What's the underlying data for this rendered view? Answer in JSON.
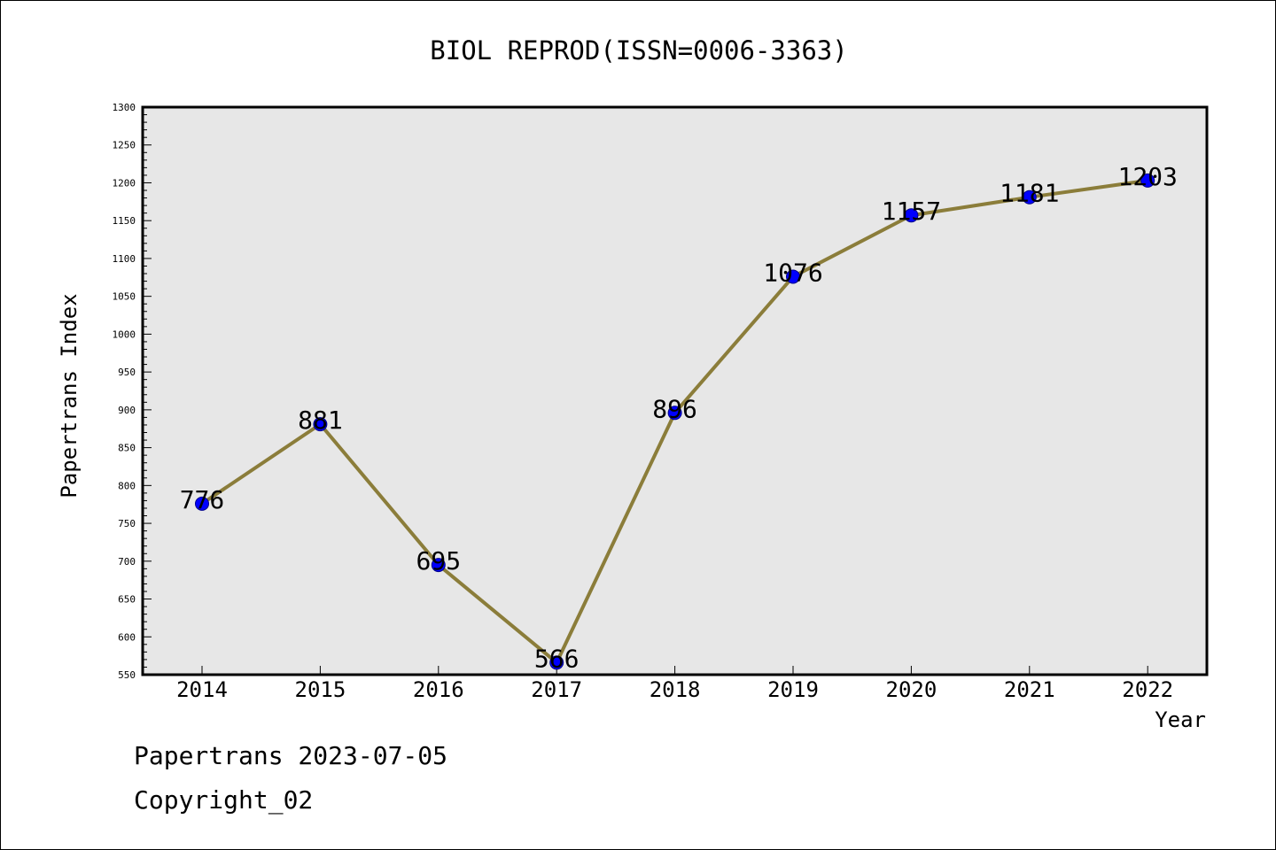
{
  "chart_data": {
    "type": "line",
    "title": "BIOL REPROD(ISSN=0006-3363)",
    "xlabel": "Year",
    "ylabel": "Papertrans Index",
    "categories": [
      "2014",
      "2015",
      "2016",
      "2017",
      "2018",
      "2019",
      "2020",
      "2021",
      "2022"
    ],
    "series": [
      {
        "values": [
          776,
          881,
          695,
          566,
          896,
          1076,
          1157,
          1181,
          1203
        ]
      }
    ],
    "data_labels": [
      "776",
      "881",
      "695",
      "566",
      "896",
      "1076",
      "1157",
      "1181",
      "1203"
    ],
    "ylim": [
      550,
      1300
    ],
    "y_ticks": [
      "550",
      "600",
      "650",
      "700",
      "750",
      "800",
      "850",
      "900",
      "950",
      "1000",
      "1050",
      "1100",
      "1150",
      "1200",
      "1250",
      "1300"
    ],
    "grid": false,
    "legend": "none"
  },
  "footer": {
    "line1": "Papertrans 2023-07-05",
    "line2": "Copyright_02"
  },
  "colors": {
    "line": "#8b7d3a",
    "marker": "#0000ff",
    "marker_edge": "#00008b",
    "plot_background": "#e7e7e7",
    "axes": "#000000"
  }
}
